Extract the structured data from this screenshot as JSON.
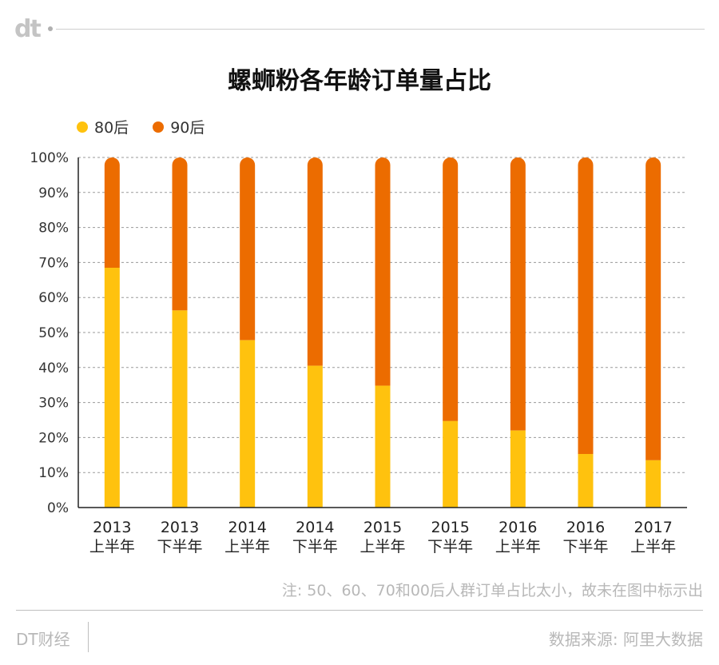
{
  "header": {
    "logo_text": "dt"
  },
  "chart_data": {
    "type": "bar",
    "stacked": true,
    "title": "螺蛳粉各年龄订单量占比",
    "categories": [
      "2013\n上半年",
      "2013\n下半年",
      "2014\n上半年",
      "2014\n下半年",
      "2015\n上半年",
      "2015\n下半年",
      "2016\n上半年",
      "2016\n下半年",
      "2017\n上半年"
    ],
    "series": [
      {
        "name": "80后",
        "color": "#ffc20e",
        "values": [
          68.5,
          56.3,
          47.8,
          40.5,
          34.8,
          24.7,
          22.0,
          15.3,
          13.5
        ]
      },
      {
        "name": "90后",
        "color": "#ec6c00",
        "values": [
          31.5,
          43.7,
          52.2,
          59.5,
          65.2,
          75.3,
          78.0,
          84.7,
          86.5
        ]
      }
    ],
    "y_ticks": [
      "0%",
      "10%",
      "20%",
      "30%",
      "40%",
      "50%",
      "60%",
      "70%",
      "80%",
      "90%",
      "100%"
    ],
    "ylim": [
      0,
      100
    ],
    "xlabel": "",
    "ylabel": "",
    "grid": true,
    "legend_position": "top-left"
  },
  "footer": {
    "note": "注: 50、60、70和00后人群订单占比太小，故未在图中标示出",
    "brand": "DT财经",
    "source": "数据来源: 阿里大数据"
  }
}
